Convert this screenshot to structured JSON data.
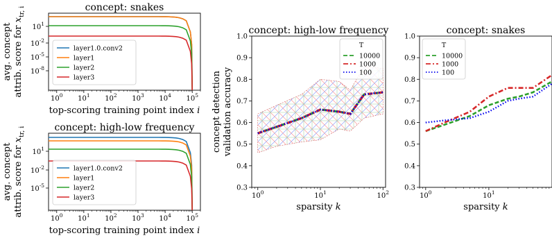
{
  "chart_data": [
    {
      "type": "line",
      "title": "concept: snakes",
      "xlabel": "top-scoring training point index i",
      "ylabel_line1": "avg. concept",
      "ylabel_line2": "attrib. score for x_{tr, i}",
      "xscale": "log",
      "yscale": "symlog",
      "xlim": [
        0.5,
        200000
      ],
      "ylim": [
        -0.5,
        4000
      ],
      "x_ticks": [
        "10^0",
        "10^1",
        "10^2",
        "10^3",
        "10^4",
        "10^5"
      ],
      "y_ticks": [
        "10^1",
        "10^-2",
        "10^-5",
        "10^-8"
      ],
      "legend_position": "lower-left",
      "series": [
        {
          "name": "layer1.0.conv2",
          "color": "#1f77b4",
          "x": [
            1,
            10,
            100,
            1000,
            10000,
            50000,
            80000,
            95000,
            100000
          ],
          "y": [
            1200,
            1150,
            1050,
            900,
            500,
            200,
            30,
            0.001,
            0
          ]
        },
        {
          "name": "layer1",
          "color": "#ff7f0e",
          "x": [
            1,
            10,
            100,
            1000,
            10000,
            50000,
            80000,
            95000,
            100000
          ],
          "y": [
            1100,
            1050,
            950,
            800,
            450,
            180,
            25,
            0.001,
            0
          ]
        },
        {
          "name": "layer2",
          "color": "#2ca02c",
          "x": [
            1,
            10,
            100,
            1000,
            10000,
            50000,
            80000,
            95000,
            100000
          ],
          "y": [
            80,
            75,
            68,
            58,
            35,
            15,
            3,
            0.0001,
            0
          ]
        },
        {
          "name": "layer3",
          "color": "#d62728",
          "x": [
            1,
            10,
            100,
            1000,
            10000,
            50000,
            80000,
            95000,
            100000
          ],
          "y": [
            3,
            2.8,
            2.5,
            2.1,
            1.4,
            0.6,
            0.1,
            1e-05,
            0
          ]
        }
      ]
    },
    {
      "type": "line",
      "title": "concept: high-low frequency",
      "xlabel": "top-scoring training point index i",
      "ylabel_line1": "avg. concept",
      "ylabel_line2": "attrib. score for x_{tr, i}",
      "xscale": "log",
      "yscale": "symlog",
      "xlim": [
        0.5,
        200000
      ],
      "ylim": [
        -0.5,
        4000
      ],
      "x_ticks": [
        "10^0",
        "10^1",
        "10^2",
        "10^3",
        "10^4",
        "10^5"
      ],
      "y_ticks": [
        "10^1",
        "10^-2",
        "10^-5"
      ],
      "legend_position": "lower-left",
      "series": [
        {
          "name": "layer1.0.conv2",
          "color": "#1f77b4",
          "x": [
            1,
            10,
            100,
            1000,
            10000,
            50000,
            80000,
            95000,
            100000
          ],
          "y": [
            1500,
            1450,
            1350,
            1150,
            700,
            300,
            50,
            0.001,
            0
          ]
        },
        {
          "name": "layer1",
          "color": "#ff7f0e",
          "x": [
            1,
            10,
            100,
            1000,
            10000,
            50000,
            80000,
            95000,
            100000
          ],
          "y": [
            700,
            650,
            580,
            480,
            280,
            110,
            20,
            0.001,
            0
          ]
        },
        {
          "name": "layer2",
          "color": "#2ca02c",
          "x": [
            1,
            10,
            100,
            1000,
            10000,
            50000,
            80000,
            95000,
            100000
          ],
          "y": [
            60,
            56,
            50,
            42,
            25,
            10,
            2,
            0.0001,
            0
          ]
        },
        {
          "name": "layer3",
          "color": "#d62728",
          "x": [
            1,
            10,
            100,
            1000,
            10000,
            50000,
            80000,
            95000,
            100000
          ],
          "y": [
            2,
            1.9,
            1.7,
            1.4,
            0.9,
            0.4,
            0.08,
            1e-05,
            0
          ]
        }
      ]
    },
    {
      "type": "line",
      "title": "concept: high-low frequency",
      "xlabel": "sparsity k",
      "ylabel_line1": "concept detection",
      "ylabel_line2": "validation accuracy",
      "xscale": "log",
      "xlim": [
        0.8,
        110
      ],
      "ylim": [
        0.3,
        1.0
      ],
      "x_ticks": [
        "10^0",
        "10^1",
        "10^2"
      ],
      "y_ticks": [
        "0.3",
        "0.4",
        "0.5",
        "0.6",
        "0.7",
        "0.8",
        "0.9",
        "1.0"
      ],
      "legend_title": "T",
      "legend_position": "upper-right",
      "band": {
        "x": [
          1,
          2,
          5,
          10,
          20,
          30,
          50,
          100
        ],
        "lower": [
          0.46,
          0.49,
          0.51,
          0.52,
          0.57,
          0.56,
          0.62,
          0.64
        ],
        "upper": [
          0.64,
          0.68,
          0.73,
          0.8,
          0.79,
          0.75,
          0.86,
          0.85
        ]
      },
      "series": [
        {
          "name": "10000",
          "color": "#2ca02c",
          "x": [
            1,
            2,
            5,
            10,
            20,
            30,
            50,
            100
          ],
          "y": [
            0.55,
            0.58,
            0.62,
            0.66,
            0.65,
            0.64,
            0.73,
            0.74
          ]
        },
        {
          "name": "1000",
          "color": "#d62728",
          "x": [
            1,
            2,
            5,
            10,
            20,
            30,
            50,
            100
          ],
          "y": [
            0.55,
            0.58,
            0.62,
            0.66,
            0.65,
            0.64,
            0.73,
            0.74
          ]
        },
        {
          "name": "100",
          "color": "#0000ee",
          "x": [
            1,
            2,
            5,
            10,
            20,
            30,
            50,
            100
          ],
          "y": [
            0.55,
            0.58,
            0.62,
            0.66,
            0.65,
            0.64,
            0.73,
            0.74
          ]
        }
      ]
    },
    {
      "type": "line",
      "title": "concept: snakes",
      "xlabel": "sparsity k",
      "xscale": "log",
      "xlim": [
        0.8,
        100
      ],
      "ylim": [
        0.3,
        1.0
      ],
      "x_ticks": [
        "10^0",
        "10^1"
      ],
      "y_ticks": [
        "0.3",
        "0.4",
        "0.5",
        "0.6",
        "0.7",
        "0.8",
        "0.9",
        "1.0"
      ],
      "legend_title": "T",
      "legend_position": "upper-left",
      "series": [
        {
          "name": "10000",
          "color": "#2ca02c",
          "x": [
            1,
            2,
            5,
            10,
            20,
            30,
            50,
            100
          ],
          "y": [
            0.56,
            0.59,
            0.63,
            0.68,
            0.71,
            0.72,
            0.74,
            0.79
          ]
        },
        {
          "name": "1000",
          "color": "#d62728",
          "x": [
            1,
            2,
            5,
            10,
            20,
            30,
            50,
            100
          ],
          "y": [
            0.56,
            0.6,
            0.65,
            0.72,
            0.76,
            0.76,
            0.76,
            0.82
          ]
        },
        {
          "name": "100",
          "color": "#0000ee",
          "x": [
            1,
            2,
            5,
            10,
            20,
            30,
            50,
            100
          ],
          "y": [
            0.6,
            0.61,
            0.62,
            0.65,
            0.7,
            0.71,
            0.72,
            0.78
          ]
        }
      ]
    }
  ]
}
